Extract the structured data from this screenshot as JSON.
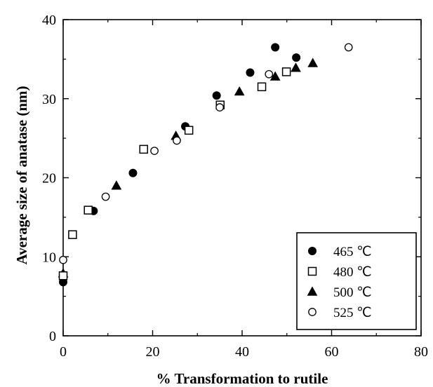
{
  "chart_data": {
    "type": "scatter",
    "xlabel": "% Transformation to rutile",
    "ylabel": "Average size of anatase (nm)",
    "xlim": [
      0,
      80
    ],
    "ylim": [
      0,
      40
    ],
    "x_ticks": [
      "0",
      "20",
      "40",
      "60",
      "80"
    ],
    "y_ticks": [
      "0",
      "10",
      "20",
      "30",
      "40"
    ],
    "grid": false,
    "legend_position": "bottom-right",
    "series": [
      {
        "name": "465 ℃",
        "marker": "filled-circle",
        "color": "#000000",
        "points": [
          [
            0,
            6.8
          ],
          [
            6.8,
            15.8
          ],
          [
            15.6,
            20.6
          ],
          [
            27.3,
            26.5
          ],
          [
            34.3,
            30.4
          ],
          [
            41.8,
            33.3
          ],
          [
            47.4,
            36.5
          ],
          [
            52.1,
            35.2
          ]
        ]
      },
      {
        "name": "480 ℃",
        "marker": "open-square",
        "color": "#000000",
        "points": [
          [
            0,
            7.6
          ],
          [
            2.1,
            12.8
          ],
          [
            5.6,
            15.9
          ],
          [
            18.0,
            23.6
          ],
          [
            28.1,
            26.0
          ],
          [
            35.1,
            29.2
          ],
          [
            44.4,
            31.5
          ],
          [
            49.9,
            33.4
          ]
        ]
      },
      {
        "name": "500 ℃",
        "marker": "filled-triangle",
        "color": "#000000",
        "points": [
          [
            0,
            7.9
          ],
          [
            11.9,
            19.0
          ],
          [
            25.2,
            25.3
          ],
          [
            39.4,
            30.9
          ],
          [
            47.4,
            32.8
          ],
          [
            52.0,
            33.9
          ],
          [
            55.8,
            34.5
          ]
        ]
      },
      {
        "name": "525 ℃",
        "marker": "open-circle",
        "color": "#000000",
        "points": [
          [
            0,
            9.6
          ],
          [
            9.5,
            17.6
          ],
          [
            20.4,
            23.4
          ],
          [
            25.4,
            24.7
          ],
          [
            35.0,
            28.9
          ],
          [
            46.0,
            33.1
          ],
          [
            63.8,
            36.5
          ]
        ]
      }
    ]
  }
}
